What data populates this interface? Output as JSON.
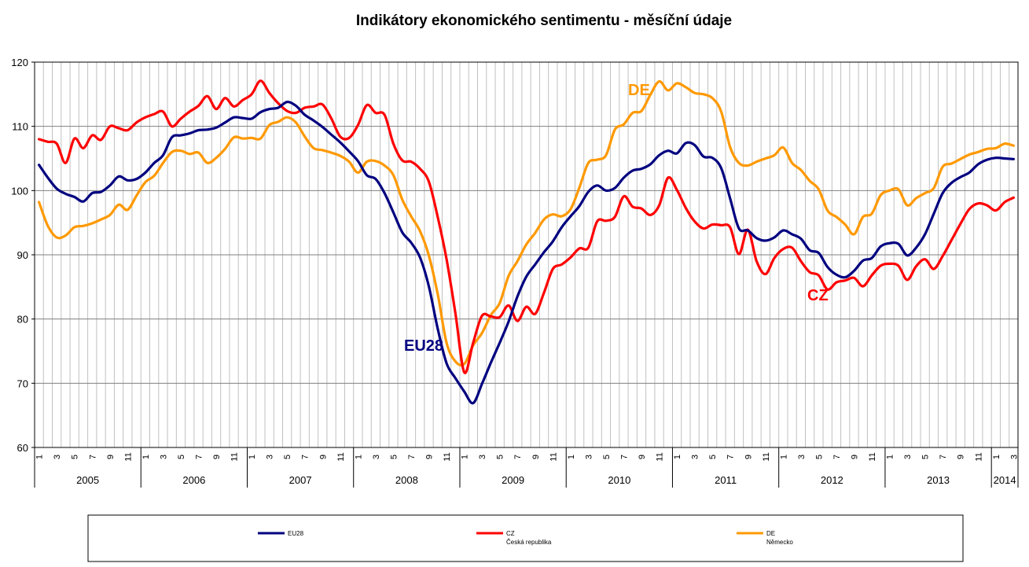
{
  "chart_data": {
    "type": "line",
    "title": "Indikátory ekonomického sentimentu - měsíční údaje",
    "xlabel": "",
    "ylabel": "",
    "ylim": [
      60,
      120
    ],
    "yticks": [
      "60",
      "70",
      "80",
      "90",
      "100",
      "110",
      "120"
    ],
    "grid": true,
    "x_start": "2005-01",
    "x_end": "2014-03",
    "month_tick_labels": [
      "1",
      "3",
      "5",
      "7",
      "9",
      "11"
    ],
    "years": [
      "2005",
      "2006",
      "2007",
      "2008",
      "2009",
      "2010",
      "2011",
      "2012",
      "2013",
      "2014"
    ],
    "legend_position": "bottom",
    "series": [
      {
        "name": "EU28",
        "chart_label": "EU28",
        "color": "#000080",
        "values": [
          104,
          102,
          100.3,
          99.5,
          99,
          98.3,
          99.6,
          99.8,
          100.8,
          102.2,
          101.6,
          101.8,
          102.8,
          104.3,
          105.5,
          108.3,
          108.6,
          108.9,
          109.4,
          109.5,
          109.8,
          110.6,
          111.4,
          111.3,
          111.2,
          112.2,
          112.7,
          112.9,
          113.8,
          113.2,
          111.8,
          110.9,
          109.9,
          108.7,
          107.5,
          106.1,
          104.6,
          102.4,
          101.8,
          99.6,
          96.6,
          93.5,
          91.9,
          89.6,
          85.1,
          78.5,
          73.1,
          70.8,
          68.7,
          66.9,
          69.9,
          73.2,
          76.3,
          79.6,
          83.5,
          86.6,
          88.5,
          90.4,
          92.1,
          94.3,
          96,
          97.6,
          99.8,
          100.8,
          100,
          100.4,
          102,
          103.1,
          103.4,
          104.1,
          105.5,
          106.2,
          105.8,
          107.4,
          107.1,
          105.3,
          105.1,
          103.5,
          98.8,
          94.1,
          93.8,
          92.6,
          92.2,
          92.7,
          93.8,
          93.2,
          92.5,
          90.7,
          90.3,
          88.1,
          86.9,
          86.5,
          87.5,
          89.1,
          89.5,
          91.3,
          91.8,
          91.7,
          89.9,
          91.1,
          93.2,
          96.4,
          99.6,
          101.2,
          102.1,
          102.8,
          104.1,
          104.8,
          105.1,
          105,
          104.9
        ]
      },
      {
        "name": "CZ",
        "chart_label": "CZ",
        "color": "#ff0000",
        "values": [
          108,
          107.6,
          107.3,
          104.3,
          108.1,
          106.6,
          108.6,
          107.9,
          110,
          109.7,
          109.4,
          110.6,
          111.4,
          111.9,
          112.3,
          110,
          111.2,
          112.3,
          113.2,
          114.7,
          112.7,
          114.4,
          113.1,
          114.1,
          115,
          117.1,
          115.2,
          113.6,
          112.4,
          112.1,
          112.9,
          113.1,
          113.4,
          111.2,
          108.4,
          108.2,
          110.2,
          113.3,
          112.1,
          111.8,
          107.3,
          104.7,
          104.5,
          103.4,
          101.4,
          95.9,
          89.3,
          80.9,
          71.7,
          76.3,
          80.5,
          80.4,
          80.3,
          82.1,
          79.7,
          81.9,
          80.8,
          84.1,
          87.8,
          88.5,
          89.6,
          91,
          91.1,
          95.2,
          95.3,
          95.9,
          99.1,
          97.5,
          97.2,
          96.2,
          97.7,
          102,
          100.1,
          97.3,
          95.2,
          94.1,
          94.7,
          94.6,
          94.3,
          90.1,
          93.9,
          89,
          87,
          89.5,
          90.9,
          91.1,
          89,
          87.3,
          86.8,
          84.6,
          85.7,
          86,
          86.4,
          85.1,
          86.8,
          88.3,
          88.6,
          88.3,
          86.1,
          88.2,
          89.3,
          87.8,
          89.8,
          92.3,
          94.8,
          97.1,
          98,
          97.7,
          96.9,
          98.2,
          98.9
        ]
      },
      {
        "name": "DE",
        "chart_label": "DE",
        "color": "#ff9900",
        "values": [
          98.2,
          94.5,
          92.7,
          93,
          94.3,
          94.5,
          94.9,
          95.5,
          96.2,
          97.8,
          97,
          99.2,
          101.3,
          102.3,
          104.3,
          106,
          106.2,
          105.7,
          105.9,
          104.3,
          105.1,
          106.5,
          108.3,
          108.1,
          108.2,
          108.1,
          110.2,
          110.7,
          111.4,
          110.6,
          108.4,
          106.6,
          106.3,
          105.9,
          105.4,
          104.5,
          102.8,
          104.5,
          104.6,
          103.9,
          102.4,
          98.6,
          96,
          93.7,
          89.9,
          83.9,
          76.3,
          73.4,
          73,
          75.9,
          77.8,
          80.6,
          82.5,
          86.7,
          89,
          91.6,
          93.4,
          95.5,
          96.3,
          96,
          97.1,
          100.5,
          104.3,
          104.8,
          105.5,
          109.5,
          110.3,
          112.1,
          112.4,
          114.9,
          117,
          115.6,
          116.7,
          116.1,
          115.2,
          115,
          114.4,
          112.3,
          106.8,
          104.3,
          103.9,
          104.5,
          105,
          105.5,
          106.7,
          104.3,
          103.2,
          101.5,
          100.2,
          96.9,
          95.9,
          94.7,
          93.2,
          95.9,
          96.4,
          99.3,
          100,
          100.2,
          97.7,
          98.8,
          99.6,
          100.4,
          103.7,
          104.2,
          104.9,
          105.6,
          106,
          106.5,
          106.6,
          107.3,
          107
        ]
      }
    ],
    "legend": [
      {
        "name": "EU28",
        "sub": ""
      },
      {
        "name": "CZ",
        "sub": "Česká republika"
      },
      {
        "name": "DE",
        "sub": "Německo"
      }
    ]
  }
}
